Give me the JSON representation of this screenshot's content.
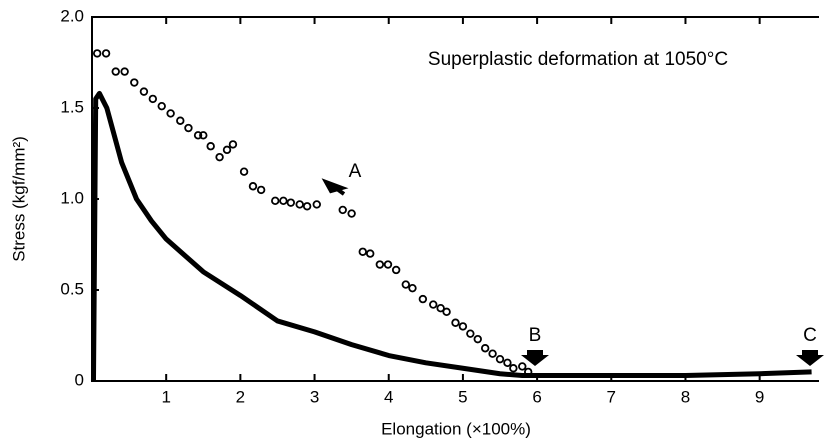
{
  "chart_data": {
    "type": "line",
    "xlabel": "Elongation (×100%)",
    "ylabel": "Stress (kgf/mm²)",
    "annotations": [
      "Superplastic deformation at 1050°C",
      "A",
      "B",
      "C"
    ],
    "xlim": [
      0,
      9.8
    ],
    "ylim": [
      0,
      2
    ],
    "xticks": [
      1,
      2,
      3,
      4,
      5,
      6,
      7,
      8,
      9
    ],
    "yticks": [
      0,
      0.5,
      {
        "value": 1,
        "label": "1.0"
      },
      1.5,
      {
        "value": 2,
        "label": "2.0"
      }
    ],
    "series": [
      {
        "style": "markers",
        "color": "#000000",
        "x": [
          0.07,
          0.19,
          0.32,
          0.44,
          0.57,
          0.7,
          0.82,
          0.94,
          1.06,
          1.19,
          1.3,
          1.43,
          1.5,
          1.6,
          1.72,
          1.82,
          1.9,
          2.05,
          2.17,
          2.28,
          2.47,
          2.58,
          2.68,
          2.8,
          2.9,
          3.03,
          3.38,
          3.5,
          3.65,
          3.75,
          3.88,
          3.99,
          4.1,
          4.23,
          4.32,
          4.46,
          4.6,
          4.7,
          4.78,
          4.9,
          5.0,
          5.1,
          5.2,
          5.3,
          5.4,
          5.5,
          5.6,
          5.68,
          5.8,
          5.88
        ],
        "values": [
          1.8,
          1.8,
          1.7,
          1.7,
          1.64,
          1.59,
          1.55,
          1.51,
          1.47,
          1.43,
          1.39,
          1.35,
          1.35,
          1.29,
          1.23,
          1.27,
          1.3,
          1.15,
          1.07,
          1.05,
          0.99,
          0.99,
          0.98,
          0.97,
          0.96,
          0.97,
          0.94,
          0.92,
          0.71,
          0.7,
          0.64,
          0.64,
          0.61,
          0.53,
          0.51,
          0.45,
          0.42,
          0.4,
          0.38,
          0.32,
          0.3,
          0.26,
          0.23,
          0.18,
          0.15,
          0.12,
          0.1,
          0.07,
          0.08,
          0.05
        ]
      },
      {
        "style": "line",
        "color": "#000000",
        "x": [
          0.02,
          0.05,
          0.1,
          0.2,
          0.4,
          0.6,
          0.8,
          1.0,
          1.5,
          2.0,
          2.5,
          3.0,
          3.5,
          4.0,
          4.5,
          5.0,
          5.5,
          5.8,
          6.0,
          7.0,
          8.0,
          9.0,
          9.7
        ],
        "values": [
          0,
          1.55,
          1.58,
          1.5,
          1.2,
          1.0,
          0.88,
          0.78,
          0.6,
          0.47,
          0.33,
          0.27,
          0.2,
          0.14,
          0.1,
          0.07,
          0.04,
          0.03,
          0.03,
          0.03,
          0.03,
          0.04,
          0.05
        ]
      }
    ]
  }
}
